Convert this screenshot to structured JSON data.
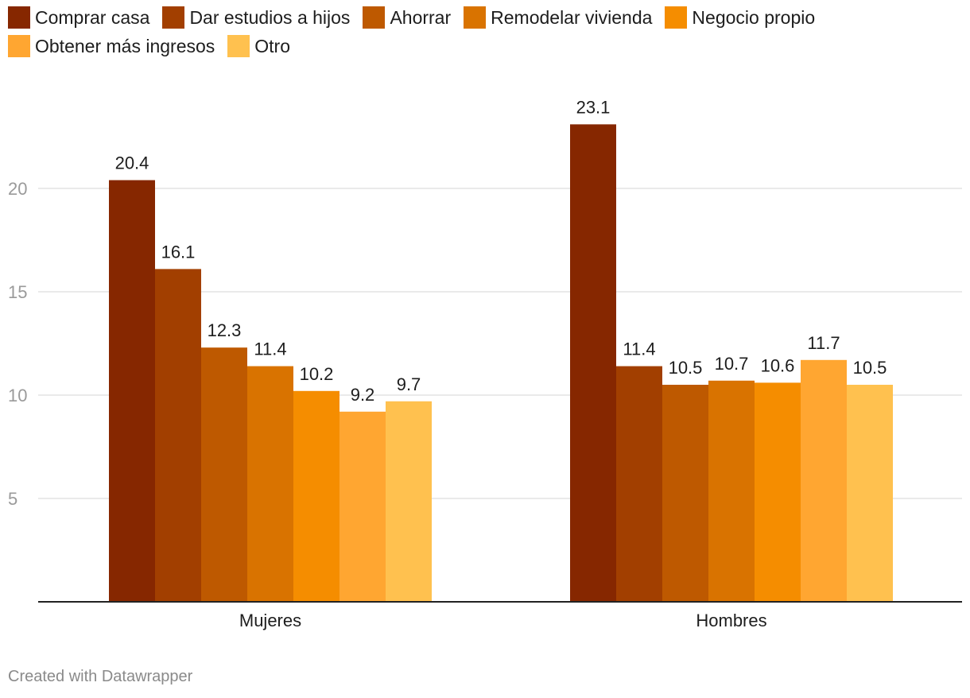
{
  "chart_data": {
    "type": "bar",
    "categories": [
      "Mujeres",
      "Hombres"
    ],
    "series": [
      {
        "name": "Comprar casa",
        "color": "#862700",
        "values": [
          20.4,
          23.1
        ]
      },
      {
        "name": "Dar estudios a hijos",
        "color": "#a23f00",
        "values": [
          16.1,
          11.4
        ]
      },
      {
        "name": "Ahorrar",
        "color": "#be5900",
        "values": [
          12.3,
          10.5
        ]
      },
      {
        "name": "Remodelar vivienda",
        "color": "#d97300",
        "values": [
          11.4,
          10.7
        ]
      },
      {
        "name": "Negocio propio",
        "color": "#f58d00",
        "values": [
          10.2,
          10.6
        ]
      },
      {
        "name": "Obtener más ingresos",
        "color": "#ffa631",
        "values": [
          9.2,
          11.7
        ]
      },
      {
        "name": "Otro",
        "color": "#ffc14f",
        "values": [
          9.7,
          10.5
        ]
      }
    ],
    "yticks": [
      5,
      10,
      15,
      20
    ],
    "ylim": [
      0,
      25
    ],
    "grid": true,
    "legend": "top"
  },
  "footer": {
    "credit": "Created with Datawrapper"
  }
}
